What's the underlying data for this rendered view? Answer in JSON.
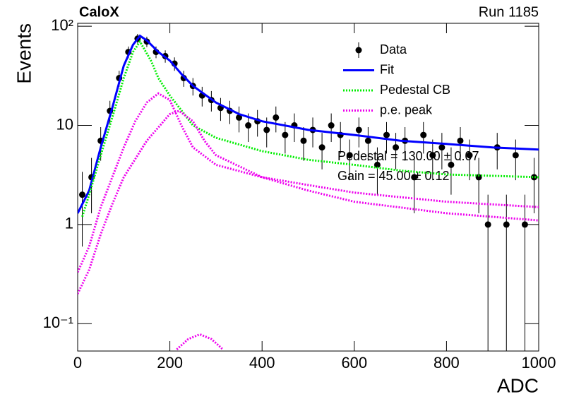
{
  "chart_data": {
    "type": "line",
    "title": "CaloX",
    "subtitle": "Run 1185",
    "xlabel": "ADC",
    "ylabel": "Events",
    "annotations": [
      "Pedestal = 130.00 ± 0.07",
      "Gain = 45.00 ± 0.12"
    ],
    "xlim": [
      0,
      1000
    ],
    "xticks": [
      0,
      200,
      400,
      600,
      800,
      1000
    ],
    "ylim": [
      0.053,
      107
    ],
    "log_y": true,
    "yticks": [
      {
        "value": 0.1,
        "label": "10⁻¹"
      },
      1,
      10,
      {
        "value": 100,
        "label": "10²"
      }
    ],
    "legend": "top-right",
    "series": [
      {
        "name": "Data",
        "type": "errorbar",
        "color": "#000000",
        "x": [
          10,
          30,
          50,
          70,
          90,
          110,
          130,
          150,
          170,
          190,
          210,
          230,
          250,
          270,
          290,
          310,
          330,
          350,
          370,
          390,
          410,
          430,
          450,
          470,
          490,
          510,
          530,
          550,
          570,
          590,
          610,
          630,
          650,
          670,
          690,
          710,
          730,
          750,
          770,
          790,
          810,
          830,
          850,
          870,
          890,
          910,
          930,
          950,
          970,
          990
        ],
        "values": [
          2,
          3,
          7,
          14,
          30,
          55,
          75,
          70,
          55,
          50,
          42,
          30,
          25,
          20,
          18,
          15,
          14,
          12,
          10,
          11,
          9,
          12,
          8,
          10,
          7,
          9,
          6,
          10,
          8,
          5,
          9,
          7,
          4,
          8,
          6,
          7,
          3,
          8,
          5,
          6,
          4,
          7,
          5,
          3,
          1,
          6,
          1,
          5,
          1,
          3
        ],
        "errors": [
          1.4,
          1.7,
          2.6,
          3.7,
          5.5,
          7.4,
          8.7,
          8.4,
          7.4,
          7.1,
          6.5,
          5.5,
          5,
          4.5,
          4.2,
          3.9,
          3.7,
          3.5,
          3.2,
          3.3,
          3,
          3.5,
          2.8,
          3.2,
          2.6,
          3,
          2.4,
          3.2,
          2.8,
          2.2,
          3,
          2.6,
          2,
          2.8,
          2.4,
          2.6,
          1.7,
          2.8,
          2.2,
          2.4,
          2,
          2.6,
          2.2,
          1.7,
          1,
          2.4,
          1,
          2.2,
          1,
          1.7
        ]
      },
      {
        "name": "Fit",
        "type": "line",
        "style": "solid",
        "color": "#0000ff",
        "x": [
          0,
          25,
          50,
          75,
          100,
          120,
          135,
          150,
          175,
          200,
          225,
          250,
          300,
          350,
          400,
          500,
          600,
          700,
          800,
          900,
          1000
        ],
        "values": [
          1.3,
          2.2,
          6,
          15,
          40,
          65,
          80,
          72,
          55,
          45,
          33,
          25,
          17,
          13,
          11,
          9,
          8,
          7,
          6.5,
          6,
          5.7
        ]
      },
      {
        "name": "Pedestal CB",
        "type": "line",
        "style": "dotted",
        "color": "#00ee00",
        "x": [
          10,
          25,
          50,
          75,
          100,
          120,
          135,
          160,
          175,
          200,
          250,
          300,
          400,
          500,
          600,
          700,
          800,
          1000
        ],
        "values": [
          1.2,
          2,
          5,
          12,
          30,
          55,
          70,
          44,
          30,
          20,
          10,
          7.5,
          5.5,
          4.5,
          4,
          3.5,
          3.2,
          3
        ]
      },
      {
        "name": "p.e. peak",
        "type": "line",
        "style": "dotted",
        "color": "#ee00ee",
        "x": [
          0,
          25,
          50,
          75,
          100,
          125,
          150,
          175,
          200,
          225,
          250,
          300,
          400,
          500,
          600,
          800,
          1000
        ],
        "values": [
          0.33,
          0.6,
          1.5,
          3,
          6,
          11,
          17,
          21,
          18,
          10,
          6,
          4,
          3,
          2.5,
          2.1,
          1.7,
          1.5
        ]
      },
      {
        "type": "line",
        "style": "dotted",
        "color": "#ee00ee",
        "x": [
          0,
          25,
          50,
          75,
          100,
          150,
          200,
          220,
          250,
          275,
          300,
          400,
          500,
          600,
          800,
          1000
        ],
        "values": [
          0.2,
          0.35,
          0.8,
          1.6,
          3,
          7,
          13,
          14,
          11,
          7,
          5,
          3,
          2.2,
          1.7,
          1.3,
          1.1
        ]
      },
      {
        "type": "line",
        "style": "dotted",
        "color": "#ee00ee",
        "x": [
          215,
          240,
          265,
          290,
          315
        ],
        "values": [
          0.055,
          0.07,
          0.078,
          0.07,
          0.055
        ]
      }
    ]
  }
}
